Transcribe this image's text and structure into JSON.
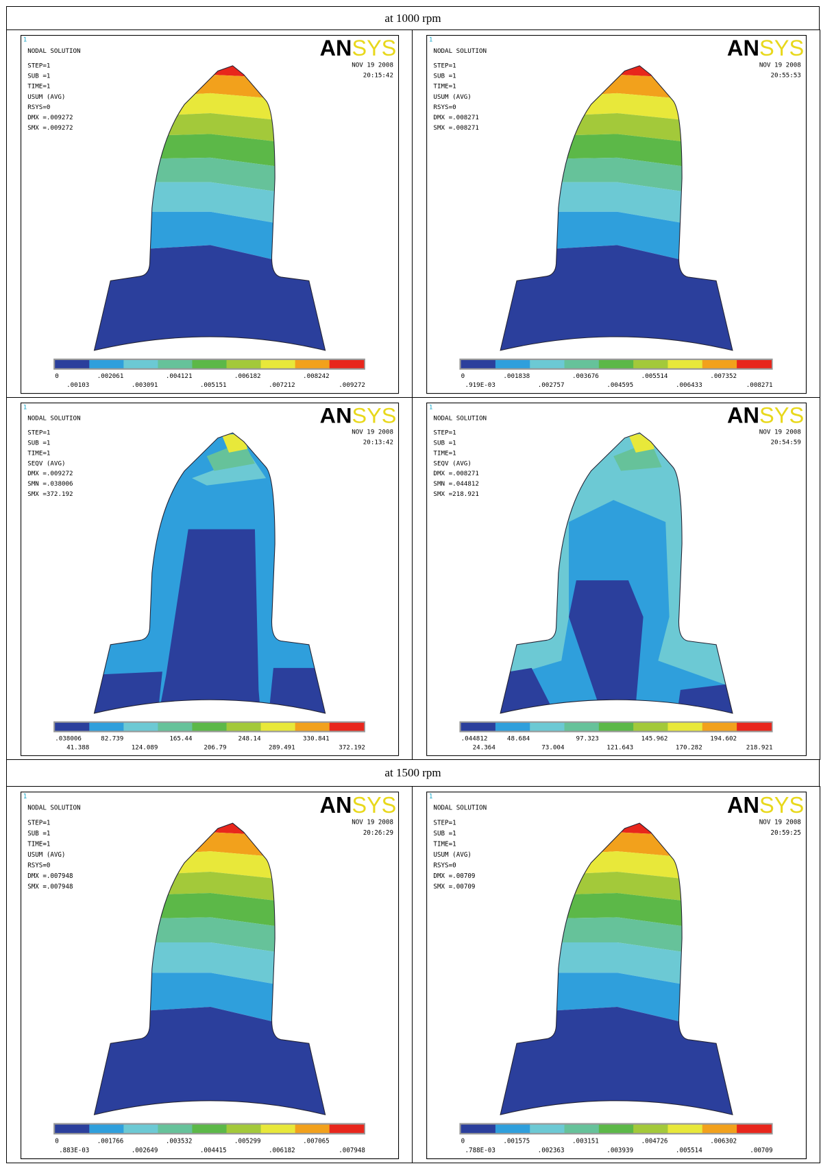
{
  "sections": [
    {
      "title": "at 1000 rpm",
      "panels": [
        {
          "index": "1",
          "heading": "NODAL SOLUTION",
          "info": [
            "STEP=1",
            "SUB =1",
            "TIME=1",
            "USUM    (AVG)",
            "RSYS=0",
            "DMX =.009272",
            "SMX =.009272"
          ],
          "brand": [
            "AN",
            "SYS"
          ],
          "date": "NOV 19 2008",
          "time": "20:15:42",
          "legend_top": [
            "0",
            ".002061",
            ".004121",
            ".006182",
            ".008242"
          ],
          "legend_bottom": [
            ".00103",
            ".003091",
            ".005151",
            ".007212",
            ".009272"
          ]
        },
        {
          "index": "1",
          "heading": "NODAL SOLUTION",
          "info": [
            "STEP=1",
            "SUB =1",
            "TIME=1",
            "USUM    (AVG)",
            "RSYS=0",
            "DMX =.008271",
            "SMX =.008271"
          ],
          "brand": [
            "AN",
            "SYS"
          ],
          "date": "NOV 19 2008",
          "time": "20:55:53",
          "legend_top": [
            "0",
            ".001838",
            ".003676",
            ".005514",
            ".007352"
          ],
          "legend_bottom": [
            ".919E-03",
            ".002757",
            ".004595",
            ".006433",
            ".008271"
          ]
        },
        {
          "index": "1",
          "heading": "NODAL SOLUTION",
          "info": [
            "STEP=1",
            "SUB =1",
            "TIME=1",
            "SEQV    (AVG)",
            "DMX =.009272",
            "SMN =.038006",
            "SMX =372.192"
          ],
          "brand": [
            "AN",
            "SYS"
          ],
          "date": "NOV 19 2008",
          "time": "20:13:42",
          "legend_top": [
            ".038006",
            "82.739",
            "165.44",
            "248.14",
            "330.841"
          ],
          "legend_bottom": [
            "41.388",
            "124.089",
            "206.79",
            "289.491",
            "372.192"
          ]
        },
        {
          "index": "1",
          "heading": "NODAL SOLUTION",
          "info": [
            "STEP=1",
            "SUB =1",
            "TIME=1",
            "SEQV    (AVG)",
            "DMX =.008271",
            "SMN =.044812",
            "SMX =218.921"
          ],
          "brand": [
            "AN",
            "SYS"
          ],
          "date": "NOV 19 2008",
          "time": "20:54:59",
          "legend_top": [
            ".044812",
            "48.684",
            "97.323",
            "145.962",
            "194.602"
          ],
          "legend_bottom": [
            "24.364",
            "73.004",
            "121.643",
            "170.282",
            "218.921"
          ]
        }
      ]
    },
    {
      "title": "at 1500 rpm",
      "panels": [
        {
          "index": "1",
          "heading": "NODAL SOLUTION",
          "info": [
            "STEP=1",
            "SUB =1",
            "TIME=1",
            "USUM    (AVG)",
            "RSYS=0",
            "DMX =.007948",
            "SMX =.007948"
          ],
          "brand": [
            "AN",
            "SYS"
          ],
          "date": "NOV 19 2008",
          "time": "20:26:29",
          "legend_top": [
            "0",
            ".001766",
            ".003532",
            ".005299",
            ".007065"
          ],
          "legend_bottom": [
            ".883E-03",
            ".002649",
            ".004415",
            ".006182",
            ".007948"
          ]
        },
        {
          "index": "1",
          "heading": "NODAL SOLUTION",
          "info": [
            "STEP=1",
            "SUB =1",
            "TIME=1",
            "USUM    (AVG)",
            "RSYS=0",
            "DMX =.00709",
            "SMX =.00709"
          ],
          "brand": [
            "AN",
            "SYS"
          ],
          "date": "NOV 19 2008",
          "time": "20:59:25",
          "legend_top": [
            "0",
            ".001575",
            ".003151",
            ".004726",
            ".006302"
          ],
          "legend_bottom": [
            ".788E-03",
            ".002363",
            ".003939",
            ".005514",
            ".00709"
          ]
        }
      ]
    }
  ]
}
